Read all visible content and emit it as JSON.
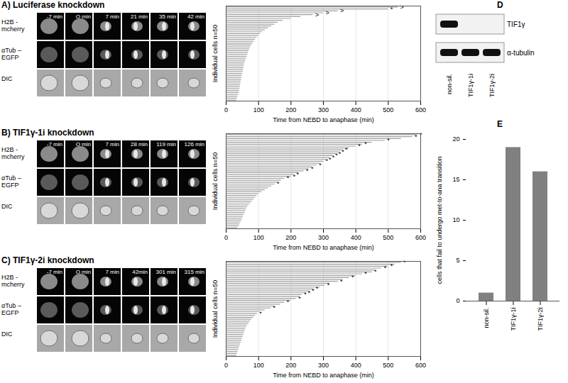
{
  "figure": {
    "panels": [
      {
        "label": "A) Luciferase knockdown",
        "rows": [
          "H2B -mcherry",
          "αTub –EGFP",
          "DIC"
        ],
        "times": [
          "-7 min",
          "O min",
          "7 min",
          "21 min",
          "35 min",
          "42 min"
        ]
      },
      {
        "label": "B) TIF1γ-1i knockdown",
        "rows": [
          "H2B -mcherry",
          "αTub –EGFP",
          "DIC"
        ],
        "times": [
          "-7 min",
          "O min",
          "7 min",
          "28 min",
          "119 min",
          "126 min"
        ]
      },
      {
        "label": "C) TIF1γ-2i knockdown",
        "rows": [
          "H2B -mcherry",
          "αTub –EGFP",
          "DIC"
        ],
        "times": [
          "-7 min",
          "O min",
          "7 min",
          "42min",
          "301 min",
          "315 min"
        ]
      }
    ],
    "blot": {
      "title": "D",
      "lanes": [
        "non-sil.",
        "TIF1γ-1i",
        "TIF1γ-2i"
      ],
      "rows": [
        {
          "label": "TIF1γ",
          "bands": [
            true,
            false,
            false
          ]
        },
        {
          "label": "α-tubulin",
          "bands": [
            true,
            true,
            true
          ]
        }
      ]
    }
  },
  "chart_data": [
    {
      "type": "bar",
      "orientation": "horizontal",
      "x_label": "Time from NEBD to anaphase (min)",
      "y_label": "Individual cells n=50",
      "categories": [
        null,
        null,
        null,
        null,
        null,
        null,
        null,
        null,
        null,
        null,
        null,
        null,
        null,
        null,
        null,
        null,
        null,
        null,
        null,
        null,
        null,
        null,
        null,
        null,
        null,
        null,
        null,
        null,
        null,
        null,
        null,
        null,
        null,
        null,
        null,
        null,
        null,
        null,
        null,
        null,
        null,
        null,
        null,
        null,
        null,
        null,
        null,
        null,
        null,
        null
      ],
      "values": [
        530,
        500,
        345,
        300,
        268,
        230,
        200,
        175,
        160,
        150,
        140,
        130,
        120,
        112,
        105,
        100,
        95,
        90,
        86,
        82,
        78,
        75,
        72,
        70,
        68,
        66,
        64,
        62,
        60,
        58,
        56,
        55,
        54,
        53,
        52,
        50,
        49,
        48,
        47,
        46,
        45,
        44,
        43,
        42,
        41,
        40,
        38,
        36,
        34,
        32
      ],
      "end_marks": [
        ">",
        "*",
        ">",
        ">",
        ">",
        null,
        null,
        null,
        null,
        null,
        null,
        null,
        null,
        null,
        null,
        null,
        null,
        null,
        null,
        null,
        null,
        null,
        null,
        null,
        null,
        null,
        null,
        null,
        null,
        null,
        null,
        null,
        null,
        null,
        null,
        null,
        null,
        null,
        null,
        null,
        null,
        null,
        null,
        null,
        null,
        null,
        null,
        null,
        null,
        null
      ],
      "xlim": [
        0,
        600
      ],
      "xticks": [
        0,
        100,
        200,
        300,
        400,
        500,
        600
      ],
      "grid": true,
      "tick_labels": "x",
      "color": "#a0a0a0"
    },
    {
      "type": "bar",
      "orientation": "horizontal",
      "x_label": "Time from NEBD to anaphase (min)",
      "y_label": "Individual cells n=50",
      "categories": [
        null,
        null,
        null,
        null,
        null,
        null,
        null,
        null,
        null,
        null,
        null,
        null,
        null,
        null,
        null,
        null,
        null,
        null,
        null,
        null,
        null,
        null,
        null,
        null,
        null,
        null,
        null,
        null,
        null,
        null,
        null,
        null,
        null,
        null,
        null,
        null,
        null,
        null,
        null,
        null,
        null,
        null,
        null,
        null,
        null,
        null,
        null,
        null,
        null,
        null
      ],
      "values": [
        590,
        575,
        540,
        490,
        450,
        420,
        400,
        380,
        360,
        350,
        340,
        330,
        320,
        310,
        300,
        290,
        280,
        265,
        255,
        240,
        225,
        210,
        200,
        180,
        170,
        160,
        150,
        140,
        130,
        120,
        110,
        100,
        95,
        90,
        85,
        80,
        75,
        70,
        65,
        62,
        60,
        58,
        55,
        52,
        50,
        48,
        45,
        42,
        40,
        35
      ],
      "end_marks": [
        "*",
        "*",
        null,
        "*",
        null,
        "*",
        "*",
        null,
        "*",
        "*",
        "*",
        "*",
        "*",
        "*",
        "*",
        null,
        "*",
        null,
        "*",
        "*",
        null,
        "*",
        "*",
        "*",
        null,
        null,
        "*",
        null,
        null,
        null,
        null,
        null,
        null,
        null,
        null,
        null,
        null,
        null,
        null,
        null,
        null,
        null,
        null,
        null,
        null,
        null,
        null,
        null,
        null,
        null
      ],
      "xlim": [
        0,
        600
      ],
      "xticks": [
        0,
        100,
        200,
        300,
        400,
        500,
        600
      ],
      "grid": true,
      "tick_labels": "x",
      "color": "#a0a0a0"
    },
    {
      "type": "bar",
      "orientation": "horizontal",
      "x_label": "Time from NEBD to anaphase (min)",
      "y_label": "Individual cells n=50",
      "categories": [
        null,
        null,
        null,
        null,
        null,
        null,
        null,
        null,
        null,
        null,
        null,
        null,
        null,
        null,
        null,
        null,
        null,
        null,
        null,
        null,
        null,
        null,
        null,
        null,
        null,
        null,
        null,
        null,
        null,
        null,
        null,
        null,
        null,
        null,
        null,
        null,
        null,
        null,
        null,
        null,
        null,
        null,
        null,
        null,
        null,
        null,
        null,
        null,
        null,
        null
      ],
      "values": [
        540,
        520,
        500,
        480,
        460,
        450,
        420,
        400,
        380,
        360,
        345,
        320,
        305,
        290,
        270,
        258,
        246,
        234,
        228,
        216,
        200,
        180,
        168,
        150,
        138,
        120,
        102,
        96,
        90,
        84,
        78,
        74,
        70,
        66,
        62,
        60,
        58,
        56,
        54,
        52,
        50,
        48,
        46,
        44,
        42,
        40,
        38,
        36,
        34,
        32
      ],
      "end_marks": [
        "*",
        null,
        "*",
        "*",
        null,
        "*",
        "*",
        null,
        "*",
        null,
        "*",
        null,
        "*",
        null,
        "*",
        "*",
        "*",
        "*",
        null,
        "*",
        null,
        "*",
        null,
        null,
        "*",
        null,
        null,
        "*",
        null,
        null,
        null,
        null,
        null,
        null,
        null,
        null,
        null,
        null,
        null,
        null,
        null,
        null,
        null,
        null,
        null,
        null,
        null,
        null,
        null,
        null
      ],
      "xlim": [
        0,
        600
      ],
      "xticks": [
        0,
        100,
        200,
        300,
        400,
        500,
        600
      ],
      "grid": true,
      "tick_labels": "x",
      "color": "#a0a0a0"
    },
    {
      "type": "bar",
      "title": "E",
      "y_label": "cells that fail to undergo met-to-ana transition",
      "categories": [
        "non-sil.",
        "TIF1γ-1i",
        "TIF1γ-2i"
      ],
      "values": [
        1,
        19,
        16
      ],
      "ylim": [
        0,
        20
      ],
      "yticks": [
        0,
        5,
        10,
        15,
        20
      ],
      "color": "#808080"
    }
  ]
}
